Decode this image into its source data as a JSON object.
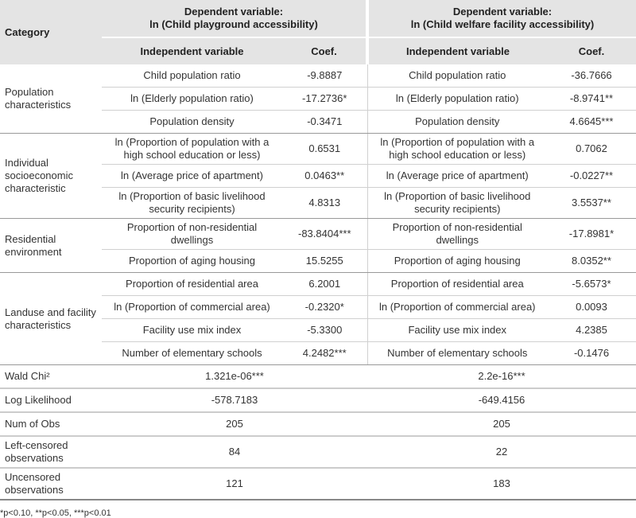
{
  "headers": {
    "category": "Category",
    "dep1": "Dependent variable:",
    "dep1b": "ln (Child playground accessibility)",
    "dep2": "Dependent variable:",
    "dep2b": "ln (Child welfare facility accessibility)",
    "iv": "Independent variable",
    "coef": "Coef."
  },
  "groups": [
    {
      "category": "Population characteristics",
      "rows": [
        [
          "Child population ratio",
          "-9.8887",
          "Child population ratio",
          "-36.7666"
        ],
        [
          "ln (Elderly population ratio)",
          "-17.2736*",
          "ln (Elderly population ratio)",
          "-8.9741**"
        ],
        [
          "Population density",
          "-0.3471",
          "Population density",
          "4.6645***"
        ]
      ]
    },
    {
      "category": "Individual socioeconomic characteristic",
      "rows": [
        [
          "ln (Proportion of population with a high school education or less)",
          "0.6531",
          "ln (Proportion of population with a high school education or less)",
          "0.7062"
        ],
        [
          "ln (Average price of apartment)",
          "0.0463**",
          "ln (Average price of apartment)",
          "-0.0227**"
        ],
        [
          "ln (Proportion of basic livelihood security recipients)",
          "4.8313",
          "ln (Proportion of basic livelihood security recipients)",
          "3.5537**"
        ]
      ]
    },
    {
      "category": "Residential environment",
      "rows": [
        [
          "Proportion of non-residential dwellings",
          "-83.8404***",
          "Proportion of non-residential dwellings",
          "-17.8981*"
        ],
        [
          "Proportion of aging housing",
          "15.5255",
          "Proportion of aging housing",
          "8.0352**"
        ]
      ]
    },
    {
      "category": "Landuse and facility characteristics",
      "rows": [
        [
          "Proportion of residential area",
          "6.2001",
          "Proportion of residential area",
          "-5.6573*"
        ],
        [
          "ln (Proportion of commercial area)",
          "-0.2320*",
          "ln (Proportion of commercial area)",
          "0.0093"
        ],
        [
          "Facility use mix index",
          "-5.3300",
          "Facility use mix index",
          "4.2385"
        ],
        [
          "Number of elementary schools",
          "4.2482***",
          "Number of elementary schools",
          "-0.1476"
        ]
      ]
    }
  ],
  "stats": [
    [
      "Wald Chi²",
      "1.321e-06***",
      "2.2e-16***"
    ],
    [
      "Log Likelihood",
      "-578.7183",
      "-649.4156"
    ],
    [
      "Num of Obs",
      "205",
      "205"
    ],
    [
      "Left-censored observations",
      "84",
      "22"
    ],
    [
      "Uncensored observations",
      "121",
      "183"
    ]
  ],
  "footnote": "*p<0.10, **p<0.05, ***p<0.01"
}
